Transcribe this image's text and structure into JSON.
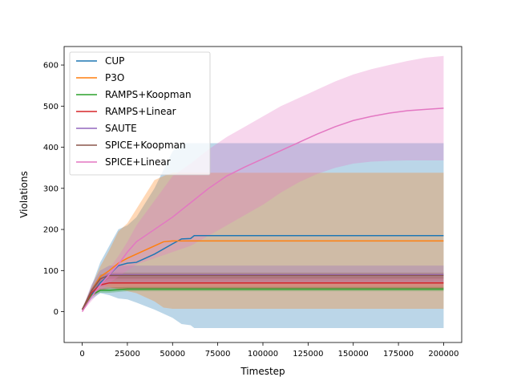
{
  "chart_data": {
    "type": "line",
    "xlabel": "Timestep",
    "ylabel": "Violations",
    "xlim": [
      -10000,
      210000
    ],
    "ylim": [
      -75,
      645
    ],
    "xticks": [
      0,
      25000,
      50000,
      75000,
      100000,
      125000,
      150000,
      175000,
      200000
    ],
    "yticks": [
      0,
      100,
      200,
      300,
      400,
      500,
      600
    ],
    "xtick_labels": [
      "0",
      "25000",
      "50000",
      "75000",
      "100000",
      "125000",
      "150000",
      "175000",
      "200000"
    ],
    "ytick_labels": [
      "0",
      "100",
      "200",
      "300",
      "400",
      "500",
      "600"
    ],
    "grid": false,
    "legend_position": "upper-left",
    "series": [
      {
        "name": "CUP",
        "color": "#1f77b4",
        "x": [
          0,
          5000,
          10000,
          15000,
          20000,
          25000,
          30000,
          40000,
          50000,
          55000,
          60000,
          62000,
          70000,
          100000,
          150000,
          200000
        ],
        "y": [
          5,
          40,
          70,
          90,
          112,
          118,
          120,
          140,
          165,
          177,
          178,
          185,
          185,
          185,
          185,
          185
        ],
        "upper": [
          5,
          60,
          120,
          160,
          200,
          210,
          230,
          300,
          390,
          410,
          410,
          410,
          410,
          410,
          410,
          410
        ],
        "lower": [
          5,
          30,
          45,
          40,
          32,
          30,
          22,
          5,
          -15,
          -30,
          -33,
          -40,
          -40,
          -40,
          -40,
          -40
        ]
      },
      {
        "name": "P3O",
        "color": "#ff7f0e",
        "x": [
          0,
          5000,
          10000,
          15000,
          20000,
          25000,
          30000,
          40000,
          45000,
          50000,
          100000,
          150000,
          200000
        ],
        "y": [
          5,
          50,
          85,
          100,
          118,
          130,
          140,
          160,
          170,
          172,
          172,
          172,
          172
        ],
        "upper": [
          5,
          60,
          110,
          150,
          195,
          215,
          250,
          320,
          330,
          338,
          338,
          338,
          338
        ],
        "lower": [
          5,
          40,
          60,
          60,
          55,
          50,
          45,
          25,
          10,
          7,
          7,
          7,
          7
        ]
      },
      {
        "name": "RAMPS+Koopman",
        "color": "#2ca02c",
        "x": [
          0,
          5000,
          10000,
          15000,
          25000,
          200000
        ],
        "y": [
          5,
          40,
          52,
          52,
          55,
          55
        ],
        "upper": [
          5,
          44,
          58,
          59,
          60,
          60
        ],
        "lower": [
          5,
          36,
          46,
          46,
          50,
          50
        ]
      },
      {
        "name": "RAMPS+Linear",
        "color": "#d62728",
        "x": [
          0,
          5000,
          10000,
          15000,
          200000
        ],
        "y": [
          5,
          45,
          65,
          70,
          70
        ],
        "upper": [
          5,
          55,
          80,
          85,
          85
        ],
        "lower": [
          5,
          35,
          52,
          56,
          56
        ]
      },
      {
        "name": "SAUTE",
        "color": "#9467bd",
        "x": [
          0,
          5000,
          10000,
          15000,
          200000
        ],
        "y": [
          5,
          50,
          80,
          90,
          90
        ],
        "upper": [
          5,
          65,
          100,
          112,
          112
        ],
        "lower": [
          5,
          38,
          60,
          68,
          68
        ]
      },
      {
        "name": "SPICE+Koopman",
        "color": "#8c564b",
        "x": [
          0,
          5000,
          10000,
          15000,
          200000
        ],
        "y": [
          5,
          50,
          80,
          88,
          88
        ],
        "upper": [
          5,
          55,
          90,
          95,
          95
        ],
        "lower": [
          5,
          45,
          70,
          80,
          80
        ]
      },
      {
        "name": "SPICE+Linear",
        "color": "#e377c2",
        "x": [
          0,
          5000,
          10000,
          15000,
          20000,
          25000,
          30000,
          40000,
          50000,
          60000,
          70000,
          80000,
          90000,
          100000,
          110000,
          120000,
          130000,
          140000,
          150000,
          160000,
          170000,
          180000,
          190000,
          200000
        ],
        "y": [
          0,
          35,
          65,
          90,
          115,
          145,
          170,
          200,
          230,
          265,
          300,
          330,
          352,
          372,
          392,
          412,
          432,
          450,
          465,
          475,
          483,
          489,
          492,
          495
        ],
        "upper": [
          0,
          40,
          75,
          105,
          135,
          170,
          210,
          270,
          330,
          360,
          395,
          425,
          450,
          475,
          500,
          520,
          540,
          560,
          577,
          590,
          600,
          610,
          618,
          622
        ],
        "lower": [
          0,
          25,
          50,
          70,
          85,
          100,
          115,
          130,
          145,
          160,
          185,
          210,
          235,
          260,
          290,
          315,
          335,
          350,
          360,
          365,
          367,
          368,
          368,
          368
        ]
      }
    ]
  }
}
